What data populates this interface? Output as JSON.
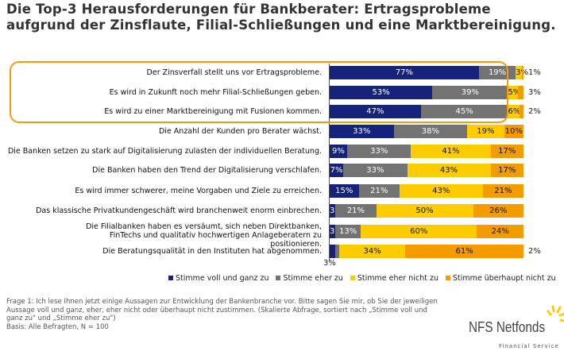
{
  "title_line1": "Die Top-3 Herausforderungen für Bankberater: Ertragsprobleme",
  "title_line2": "aufgrund der Zinsflaute, Filial-Schließungen und eine Marktbereinigung.",
  "chart_data": {
    "type": "bar",
    "orientation": "horizontal-stacked-100",
    "categories": [
      "Der Zinsverfall stellt uns vor Ertragsprobleme.",
      "Es wird in Zukunft noch mehr Filial-Schließungen geben.",
      "Es wird zu einer Marktbereinigung mit Fusionen kommen.",
      "Die Anzahl der Kunden pro Berater wächst.",
      "Die Banken setzen zu stark auf Digitalisierung zulasten der individuellen Beratung.",
      "Die Banken haben den Trend der Digitalisierung verschlafen.",
      "Es wird immer schwerer, meine Vorgaben und Ziele zu erreichen.",
      "Das klassische Privatkundengeschäft wird branchenweit enorm einbrechen.",
      "Die Filialbanken haben es versäumt, sich neben Direktbanken, FinTechs und qualitativ hochwertigen Anlageberatern zu positionieren.",
      "Die Beratungsqualität in den Instituten hat abgenommen."
    ],
    "series": [
      {
        "name": "Stimme voll und ganz zu",
        "color": "#15237a",
        "values": [
          77,
          53,
          47,
          33,
          9,
          7,
          15,
          3,
          3,
          3
        ]
      },
      {
        "name": "Stimme eher zu",
        "color": "#737373",
        "values": [
          19,
          39,
          45,
          38,
          33,
          33,
          21,
          21,
          13,
          2
        ]
      },
      {
        "name": "Stimme eher nicht zu",
        "color": "#ffcc00",
        "values": [
          3,
          5,
          6,
          19,
          41,
          43,
          43,
          50,
          60,
          34
        ]
      },
      {
        "name": "Stimme überhaupt nicht zu",
        "color": "#f39c00",
        "values": [
          1,
          3,
          2,
          10,
          17,
          17,
          21,
          26,
          24,
          61
        ]
      }
    ],
    "unit": "%",
    "xlim": [
      0,
      100
    ],
    "legend": "bottom",
    "highlighted_rows": [
      0,
      1,
      2
    ],
    "highlight_color": "#f39c12"
  },
  "footnote_lines": [
    "Frage 1: Ich lese Ihnen jetzt einige Aussagen zur Entwicklung der Bankenbranche vor. Bitte sagen Sie mir, ob Sie der jeweiligen",
    "Aussage voll und ganz, eher, eher nicht oder überhaupt nicht zustimmen. (Skalierte Abfrage, sortiert nach „Stimme voll und",
    "ganz zu\" und „Stimme eher zu\")",
    "Basis: Alle Befragten, N = 100"
  ],
  "logo": {
    "name": "NFS Netfonds",
    "tagline": "Financial Service",
    "color": "#ffcc00"
  }
}
